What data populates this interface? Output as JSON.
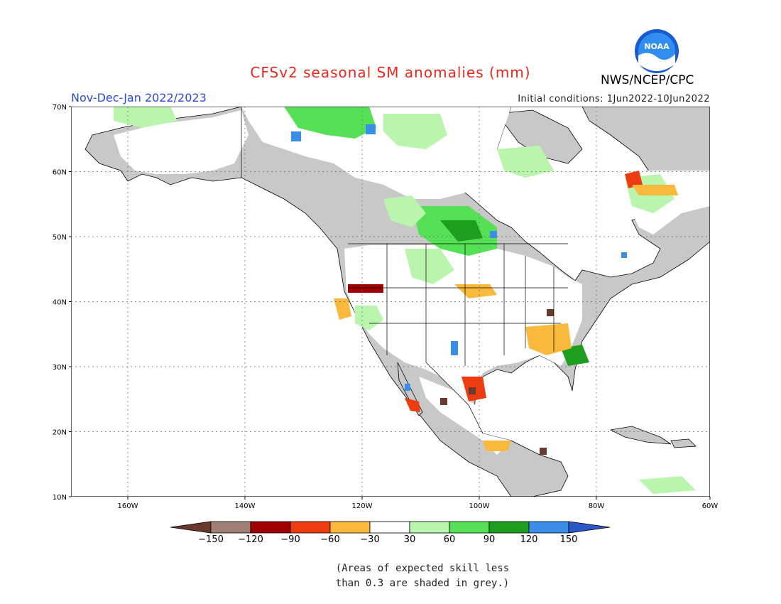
{
  "title": "CFSv2 seasonal SM anomalies (mm)",
  "period": "Nov-Dec-Jan 2022/2023",
  "initial_conditions": "Initial conditions: 1Jun2022-10Jun2022",
  "agency": "NWS/NCEP/CPC",
  "logo_text": "NOAA",
  "lat_labels": [
    "70N",
    "60N",
    "50N",
    "40N",
    "30N",
    "20N",
    "10N"
  ],
  "lon_labels": [
    "160W",
    "140W",
    "120W",
    "100W",
    "80W",
    "60W"
  ],
  "colorbar": {
    "ticks": [
      "-150",
      "-120",
      "-90",
      "-60",
      "-30",
      "30",
      "60",
      "90",
      "120",
      "150"
    ],
    "colors": [
      "#6b3a2e",
      "#a07f74",
      "#a00000",
      "#ee3b10",
      "#f8b93c",
      "#ffffff",
      "#b9f5ad",
      "#55e055",
      "#1e9e1e",
      "#3a8ee8",
      "#2a58c8"
    ]
  },
  "note_lines": [
    "(Areas of expected skill less",
    "than 0.3 are shaded in grey.)"
  ],
  "colors": {
    "land_grey": "#c8c8c8",
    "ocean": "#ffffff",
    "title": "#e8281e",
    "period": "#2a4ad8"
  }
}
